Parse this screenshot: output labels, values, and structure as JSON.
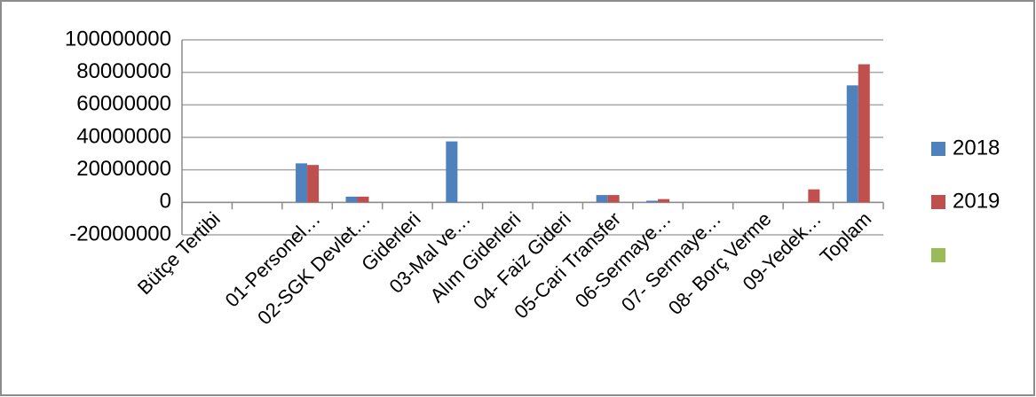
{
  "chart_data": {
    "type": "bar",
    "categories": [
      "Bütçe Tertibi",
      null,
      "01-Personel…",
      "02-SGK Devlet…",
      "Giderleri",
      "03-Mal ve…",
      "Alım Giderleri",
      "04- Faiz Gideri",
      "05-Cari Transfer",
      "06-Sermaye…",
      "07- Sermaye…",
      "08- Borç Verme",
      "09-Yedek…",
      "Toplam"
    ],
    "series": [
      {
        "name": "2018",
        "color": "#4f81bd",
        "values": [
          null,
          null,
          24000000,
          3500000,
          null,
          37500000,
          null,
          null,
          4500000,
          1000000,
          null,
          null,
          null,
          72000000
        ]
      },
      {
        "name": "2019",
        "color": "#c0504d",
        "values": [
          null,
          null,
          23000000,
          3500000,
          null,
          null,
          null,
          null,
          4500000,
          2000000,
          null,
          null,
          8000000,
          85000000
        ]
      },
      {
        "name": null,
        "color": "#9bbb59",
        "values": [
          null,
          null,
          null,
          null,
          null,
          null,
          null,
          null,
          null,
          null,
          null,
          null,
          null,
          null
        ]
      }
    ],
    "ylim": [
      -20000000,
      100000000
    ],
    "yticks": [
      -20000000,
      0,
      20000000,
      40000000,
      60000000,
      80000000,
      100000000
    ],
    "grid": true,
    "legend": "right"
  }
}
